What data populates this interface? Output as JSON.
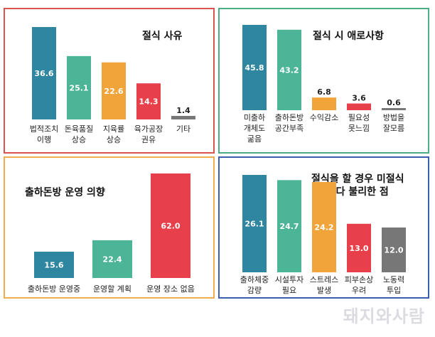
{
  "panels": [
    {
      "title": "절식 사유",
      "color": "#d9534f",
      "chart_data": {
        "type": "bar",
        "categories": [
          "법적조치\n이행",
          "돈육품질\n상승",
          "지육률\n상승",
          "육가공장\n권유",
          "기타"
        ],
        "values": [
          36.6,
          25.1,
          22.6,
          14.3,
          1.4
        ],
        "colors": [
          "#2e86a0",
          "#4db597",
          "#f0a43a",
          "#e8404a",
          "#777777"
        ],
        "title": "절식 사유"
      }
    },
    {
      "title": "절식 시 애로사항",
      "color": "#4cae87",
      "chart_data": {
        "type": "bar",
        "categories": [
          "미출하\n개체도\n굶음",
          "출하돈방\n공간부족",
          "수익감소",
          "필요성\n못느낌",
          "방법을\n잘모름"
        ],
        "values": [
          45.8,
          43.2,
          6.8,
          3.6,
          0.6
        ],
        "colors": [
          "#2e86a0",
          "#4db597",
          "#f0a43a",
          "#e8404a",
          "#777777"
        ],
        "title": "절식 시 애로사항"
      }
    },
    {
      "title": "출하돈방 운영 의향",
      "color": "#f0ad4e",
      "chart_data": {
        "type": "bar",
        "categories": [
          "출하돈방 운영중",
          "운영할 계획",
          "운영 장소 없음"
        ],
        "values": [
          15.6,
          22.4,
          62.0
        ],
        "colors": [
          "#2e86a0",
          "#4db597",
          "#e8404a"
        ],
        "title": "출하돈방 운영 의향"
      }
    },
    {
      "title": "절식을 할 경우 미절식\n보다 불리한 점",
      "color": "#3a5fb0",
      "chart_data": {
        "type": "bar",
        "categories": [
          "출하체중\n감량",
          "시설투자\n필요",
          "스트레스\n발생",
          "피부손상\n우려",
          "노동력\n투입"
        ],
        "values": [
          26.1,
          24.7,
          24.2,
          13.0,
          12.0
        ],
        "colors": [
          "#2e86a0",
          "#4db597",
          "#f0a43a",
          "#e8404a",
          "#777777"
        ],
        "title": "절식을 할 경우 미절식 보다 불리한 점"
      }
    }
  ],
  "watermark": "돼지와사람"
}
